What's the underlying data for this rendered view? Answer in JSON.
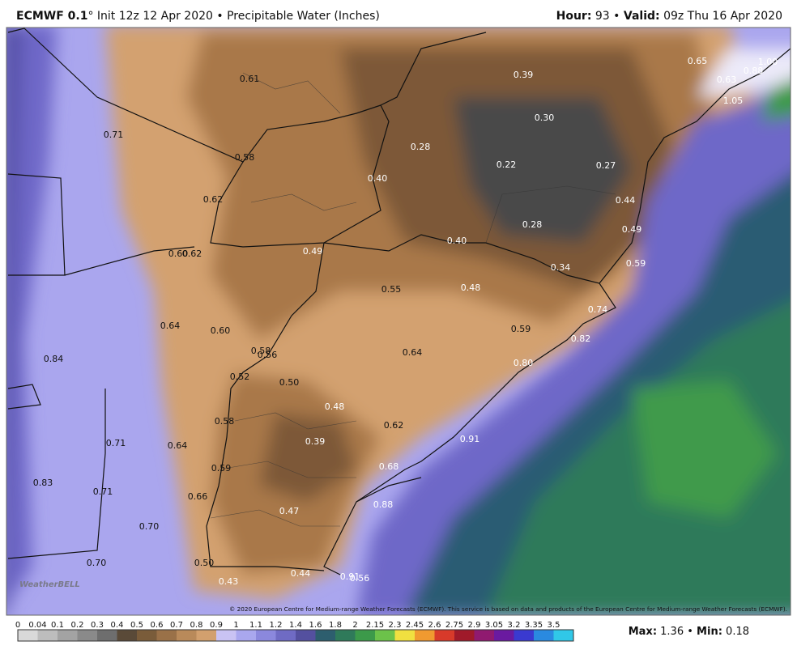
{
  "header": {
    "model": "ECMWF 0.1",
    "run": "° Init 12z 12 Apr 2020 • Precipitable Water (Inches)",
    "hour_label": "Hour:",
    "hour": "93 •",
    "valid_label": "Valid:",
    "valid": "09z Thu 16 Apr 2020"
  },
  "map": {
    "labels": [
      "0.61",
      "0.71",
      "0.58",
      "0.62",
      "0.60",
      "0.62",
      "0.49",
      "0.40",
      "0.28",
      "0.39",
      "0.30",
      "0.22",
      "0.27",
      "0.44",
      "0.49",
      "0.28",
      "0.40",
      "0.34",
      "0.59",
      "0.65",
      "1.00",
      "0.88",
      "0.63",
      "1.05",
      "0.55",
      "0.48",
      "0.74",
      "0.82",
      "0.59",
      "0.64",
      "0.60",
      "0.58",
      "0.56",
      "0.64",
      "0.80",
      "0.84",
      "0.52",
      "0.50",
      "0.48",
      "0.62",
      "0.58",
      "0.39",
      "0.91",
      "0.71",
      "0.64",
      "0.68",
      "0.59",
      "0.83",
      "0.71",
      "0.66",
      "0.88",
      "0.47",
      "0.70",
      "0.70",
      "0.50",
      "0.43",
      "0.44",
      "0.91",
      "0.56"
    ],
    "logo": "WeatherBELL",
    "copyright": "© 2020 European Centre for Medium-range Weather Forecasts (ECMWF). This service is based on data and products of the European Centre for Medium-range Weather Forecasts (ECMWF)."
  },
  "colorbar": {
    "labels": [
      "0",
      "0.04",
      "0.1",
      "0.2",
      "0.3",
      "0.4",
      "0.5",
      "0.6",
      "0.7",
      "0.8",
      "0.9",
      "1",
      "1.1",
      "1.2",
      "1.4",
      "1.6",
      "1.8",
      "2",
      "2.15",
      "2.3",
      "2.45",
      "2.6",
      "2.75",
      "2.9",
      "3.05",
      "3.2",
      "3.35",
      "3.5"
    ],
    "colors": [
      "#d9d9d9",
      "#bdbdbd",
      "#a3a3a3",
      "#8a8a8a",
      "#6e6e6e",
      "#5a4a38",
      "#7a5c3a",
      "#9a7148",
      "#b98a5a",
      "#d2a06e",
      "#c9c3f3",
      "#a9a7ee",
      "#8b88dd",
      "#6f6bc4",
      "#54509f",
      "#2d5e6e",
      "#2f7a5a",
      "#3c9a4a",
      "#6cc24a",
      "#f0e040",
      "#f09a30",
      "#d83a2a",
      "#a01a2a",
      "#901a70",
      "#6a1aa0",
      "#3a3ad0",
      "#2a8ae0",
      "#30c8e8"
    ],
    "max_label": "Max:",
    "max": "1.36 •",
    "min_label": "Min:",
    "min": "0.18"
  }
}
